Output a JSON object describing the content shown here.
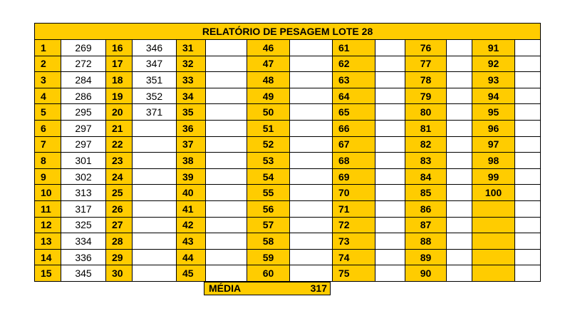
{
  "title": "RELATÓRIO DE PESAGEM LOTE 28",
  "columns": [
    {
      "numbers": [
        "1",
        "2",
        "3",
        "4",
        "5",
        "6",
        "7",
        "8",
        "9",
        "10",
        "11",
        "12",
        "13",
        "14",
        "15"
      ],
      "weights": [
        "269",
        "272",
        "284",
        "286",
        "295",
        "297",
        "297",
        "301",
        "302",
        "313",
        "317",
        "325",
        "334",
        "336",
        "345"
      ]
    },
    {
      "numbers": [
        "16",
        "17",
        "18",
        "19",
        "20",
        "21",
        "22",
        "23",
        "24",
        "25",
        "26",
        "27",
        "28",
        "29",
        "30"
      ],
      "weights": [
        "346",
        "347",
        "351",
        "352",
        "371",
        "",
        "",
        "",
        "",
        "",
        "",
        "",
        "",
        "",
        ""
      ]
    },
    {
      "numbers": [
        "31",
        "32",
        "33",
        "34",
        "35",
        "36",
        "37",
        "38",
        "39",
        "40",
        "41",
        "42",
        "43",
        "44",
        "45"
      ],
      "weights": [
        "",
        "",
        "",
        "",
        "",
        "",
        "",
        "",
        "",
        "",
        "",
        "",
        "",
        "",
        ""
      ]
    },
    {
      "numbers": [
        "46",
        "47",
        "48",
        "49",
        "50",
        "51",
        "52",
        "53",
        "54",
        "55",
        "56",
        "57",
        "58",
        "59",
        "60"
      ],
      "weights": [
        "",
        "",
        "",
        "",
        "",
        "",
        "",
        "",
        "",
        "",
        "",
        "",
        "",
        "",
        ""
      ]
    },
    {
      "numbers": [
        "61",
        "62",
        "63",
        "64",
        "65",
        "66",
        "67",
        "68",
        "69",
        "70",
        "71",
        "72",
        "73",
        "74",
        "75"
      ],
      "weights": [
        "",
        "",
        "",
        "",
        "",
        "",
        "",
        "",
        "",
        "",
        "",
        "",
        "",
        "",
        ""
      ]
    },
    {
      "numbers": [
        "76",
        "77",
        "78",
        "79",
        "80",
        "81",
        "82",
        "83",
        "84",
        "85",
        "86",
        "87",
        "88",
        "89",
        "90"
      ],
      "weights": [
        "",
        "",
        "",
        "",
        "",
        "",
        "",
        "",
        "",
        "",
        "",
        "",
        "",
        "",
        ""
      ]
    },
    {
      "numbers": [
        "91",
        "92",
        "93",
        "94",
        "95",
        "96",
        "97",
        "98",
        "99",
        "100",
        "",
        "",
        "",
        "",
        ""
      ],
      "weights": [
        "",
        "",
        "",
        "",
        "",
        "",
        "",
        "",
        "",
        "",
        "",
        "",
        "",
        "",
        ""
      ]
    }
  ],
  "media": {
    "label": "MÉDIA",
    "value": "317"
  },
  "colors": {
    "accent": "#ffcc00",
    "border": "#000000",
    "background": "#ffffff"
  }
}
